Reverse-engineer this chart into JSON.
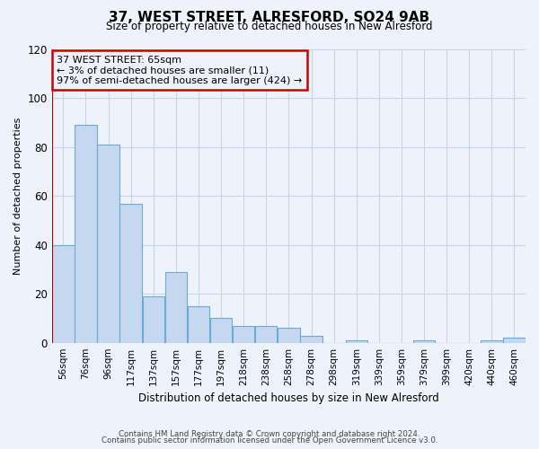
{
  "title": "37, WEST STREET, ALRESFORD, SO24 9AB",
  "subtitle": "Size of property relative to detached houses in New Alresford",
  "xlabel": "Distribution of detached houses by size in New Alresford",
  "ylabel": "Number of detached properties",
  "bar_labels": [
    "56sqm",
    "76sqm",
    "96sqm",
    "117sqm",
    "137sqm",
    "157sqm",
    "177sqm",
    "197sqm",
    "218sqm",
    "238sqm",
    "258sqm",
    "278sqm",
    "298sqm",
    "319sqm",
    "339sqm",
    "359sqm",
    "379sqm",
    "399sqm",
    "420sqm",
    "440sqm",
    "460sqm"
  ],
  "bar_values": [
    40,
    89,
    81,
    57,
    19,
    29,
    15,
    10,
    7,
    7,
    6,
    3,
    0,
    1,
    0,
    0,
    1,
    0,
    0,
    1,
    2
  ],
  "bar_color": "#c5d8f0",
  "bar_edge_color": "#6aaad4",
  "annotation_line_color": "#aa0000",
  "annotation_box_text": "37 WEST STREET: 65sqm\n← 3% of detached houses are smaller (11)\n97% of semi-detached houses are larger (424) →",
  "annotation_box_color": "#cc0000",
  "ylim": [
    0,
    120
  ],
  "yticks": [
    0,
    20,
    40,
    60,
    80,
    100,
    120
  ],
  "grid_color": "#c8d4e8",
  "background_color": "#eef2fa",
  "footer_line1": "Contains HM Land Registry data © Crown copyright and database right 2024.",
  "footer_line2": "Contains public sector information licensed under the Open Government Licence v3.0."
}
